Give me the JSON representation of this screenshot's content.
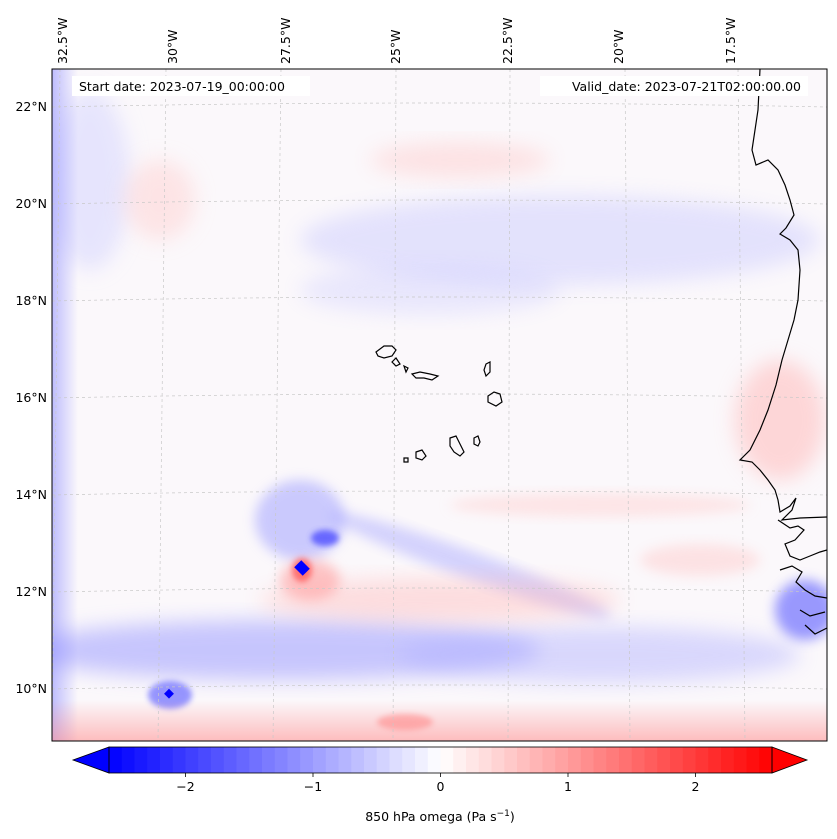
{
  "map": {
    "start_date_text": "Start date: 2023-07-19_00:00:00",
    "valid_date_text": "Valid_date: 2023-07-21T02:00:00.00",
    "lon_labels": [
      "32.5°W",
      "30°W",
      "27.5°W",
      "25°W",
      "22.5°W",
      "20°W",
      "17.5°W"
    ],
    "lat_labels": [
      "22°N",
      "20°N",
      "18°N",
      "16°N",
      "14°N",
      "12°N",
      "10°N"
    ],
    "field": "850 hPa omega",
    "field_units": "Pa s⁻¹"
  },
  "colorbar": {
    "label": "850 hPa omega (Pa s",
    "label_exp": "−1",
    "label_close": ")",
    "ticks": [
      "−2",
      "−1",
      "0",
      "1",
      "2"
    ],
    "tick_values": [
      -2,
      -1,
      0,
      1,
      2
    ],
    "range": [
      -2.6,
      2.6
    ],
    "extend": "both",
    "colormap": "bwr",
    "color_low": "#0000ff",
    "color_mid": "#ffffff",
    "color_high": "#ff0000"
  },
  "colors": {
    "coastline": "#000000",
    "gridline": "#c8c8c8",
    "frame": "#000000"
  }
}
